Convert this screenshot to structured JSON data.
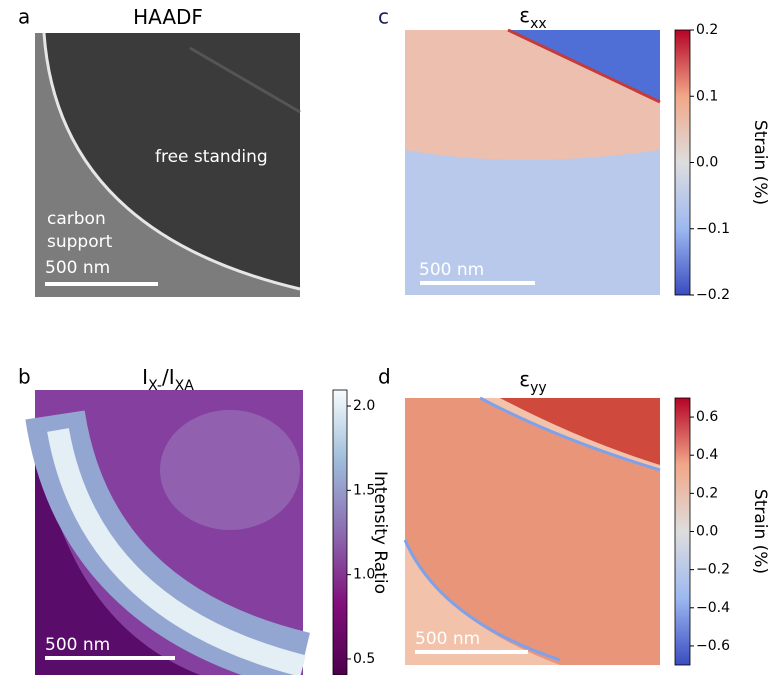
{
  "chart_data": [
    {
      "type": "image",
      "panel_label": "a",
      "title": [
        "HAADF"
      ],
      "annotations": [
        "free standing",
        "carbon",
        "support"
      ],
      "scale_bar": "500 nm"
    },
    {
      "type": "image",
      "panel_label": "b",
      "title": [
        "I",
        "X-",
        "/I",
        "XA"
      ],
      "scale_bar": "500 nm",
      "colorbar": {
        "label": "Intensity Ratio",
        "colors": [
          "#4d004b",
          "#810f7c",
          "#8c6bb1",
          "#9ebcda",
          "#f7fcfd"
        ],
        "ylim": [
          0.405,
          2.095
        ],
        "yticks": [
          0.5,
          {
            "value": 1.0,
            "label": "1.0"
          },
          1.5,
          {
            "value": 2.0,
            "label": "2.0"
          }
        ]
      }
    },
    {
      "type": "image",
      "panel_label": "c",
      "title": [
        "ε",
        "xx"
      ],
      "scale_bar": "500 nm",
      "colorbar": {
        "label": "Strain (%)",
        "colors": [
          "#3a4cc0",
          "#9db8f0",
          "#dddddd",
          "#f2a789",
          "#b40426"
        ],
        "ylim": [
          -0.2,
          0.2
        ],
        "yticks": [
          {
            "value": -0.2,
            "label": "−0.2"
          },
          {
            "value": -0.1,
            "label": "−0.1"
          },
          {
            "value": 0.0,
            "label": "0.0"
          },
          0.1,
          0.2
        ]
      }
    },
    {
      "type": "image",
      "panel_label": "d",
      "title": [
        "ε",
        "yy"
      ],
      "scale_bar": "500 nm",
      "colorbar": {
        "label": "Strain (%)",
        "colors": [
          "#3a4cc0",
          "#9db8f0",
          "#dddddd",
          "#f2a789",
          "#b40426"
        ],
        "ylim": [
          -0.7,
          0.7
        ],
        "yticks": [
          {
            "value": -0.6,
            "label": "−0.6"
          },
          {
            "value": -0.4,
            "label": "−0.4"
          },
          {
            "value": -0.2,
            "label": "−0.2"
          },
          {
            "value": 0.0,
            "label": "0.0"
          },
          0.2,
          0.4,
          0.6
        ]
      }
    }
  ]
}
